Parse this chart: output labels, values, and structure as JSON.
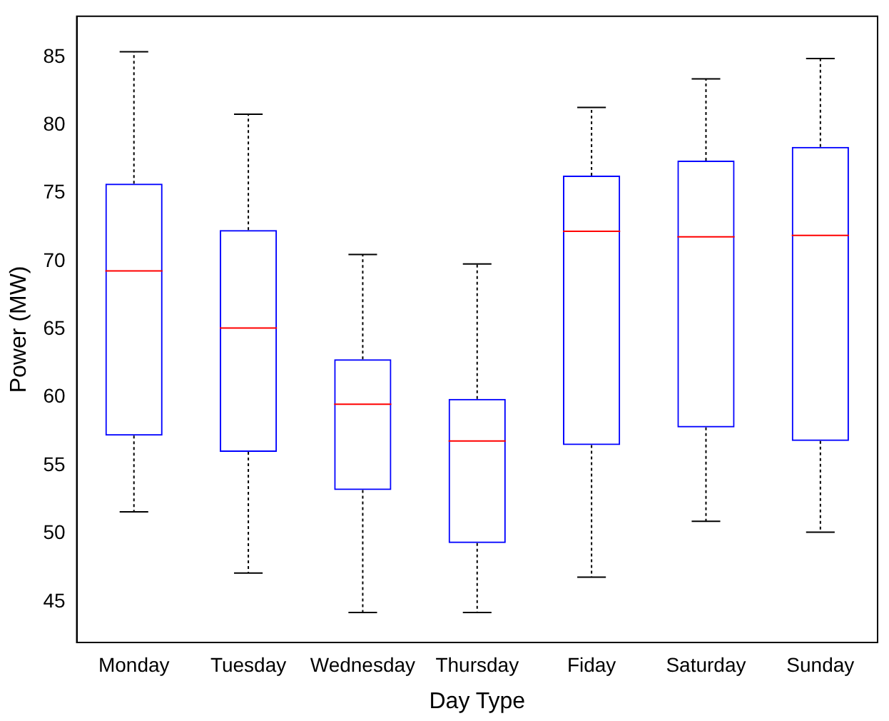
{
  "chart_data": {
    "type": "box",
    "xlabel": "Day Type",
    "ylabel": "Power (MW)",
    "categories": [
      "Monday",
      "Tuesday",
      "Wednesday",
      "Thursday",
      "Fiday",
      "Saturday",
      "Sunday"
    ],
    "series": [
      {
        "color": "#0000ff",
        "boxes": [
          {
            "low": 51.6,
            "q1": 57.2,
            "median": 69.3,
            "q3": 75.7,
            "high": 85.4
          },
          {
            "low": 47.1,
            "q1": 56.0,
            "median": 65.1,
            "q3": 72.3,
            "high": 80.8
          },
          {
            "low": 44.2,
            "q1": 53.2,
            "median": 59.5,
            "q3": 62.8,
            "high": 70.5
          },
          {
            "low": 44.2,
            "q1": 49.3,
            "median": 56.8,
            "q3": 59.9,
            "high": 69.8
          },
          {
            "low": 46.8,
            "q1": 56.5,
            "median": 72.2,
            "q3": 76.3,
            "high": 81.3
          },
          {
            "low": 50.9,
            "q1": 57.8,
            "median": 71.8,
            "q3": 77.4,
            "high": 83.4
          },
          {
            "low": 50.1,
            "q1": 56.8,
            "median": 71.9,
            "q3": 78.4,
            "high": 84.9
          }
        ]
      }
    ],
    "ylim": [
      42,
      88
    ],
    "yticks": [
      45,
      50,
      55,
      60,
      65,
      70,
      75,
      80,
      85
    ],
    "grid": false,
    "legend": false
  }
}
